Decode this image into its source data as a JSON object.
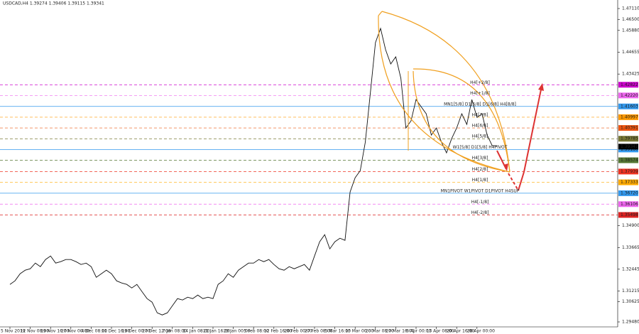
{
  "chart_data": {
    "type": "line",
    "title": "USDCAD,H4  1.39274 1.39406 1.39115 1.39341",
    "categories": [
      "5 Nov 2019",
      null,
      null,
      null,
      "12 Nov 08:00",
      null,
      null,
      null,
      "19 Nov 16:00",
      null,
      null,
      null,
      "27 Nov 00:00",
      null,
      null,
      null,
      "4 Dec 08:00",
      null,
      null,
      null,
      "11 Dec 16:00",
      null,
      null,
      null,
      "19 Dec 00:00",
      null,
      null,
      null,
      "27 Dec 12:00",
      null,
      null,
      null,
      "7 Jan 08:00",
      null,
      null,
      null,
      "14 Jan 08:00",
      null,
      null,
      null,
      "21 Jan 16:00",
      null,
      null,
      null,
      "29 Jan 00:00",
      null,
      null,
      null,
      "5 Feb 08:00",
      null,
      null,
      null,
      "12 Feb 16:00",
      null,
      null,
      null,
      "20 Feb 00:00",
      null,
      null,
      null,
      "27 Feb 08:00",
      null,
      null,
      null,
      "5 Mar 16:00",
      null,
      null,
      null,
      "13 Mar 00:00",
      null,
      null,
      null,
      "20 Mar 08:00",
      null,
      null,
      null,
      "27 Mar 16:00",
      null,
      null,
      null,
      "6 Apr 00:00",
      null,
      null,
      null,
      "13 Apr 08:00",
      null,
      null,
      null,
      "20 Apr 16:00",
      null,
      null,
      null,
      "28 Apr 00:00",
      null,
      null,
      null,
      null
    ],
    "values": [
      1.3159,
      1.3179,
      1.3219,
      1.3239,
      1.3247,
      1.3279,
      1.3259,
      1.3299,
      1.3319,
      1.3279,
      1.3287,
      1.3299,
      1.3299,
      1.3287,
      1.3271,
      1.3279,
      1.3259,
      1.3199,
      1.3219,
      1.3239,
      1.3219,
      1.3179,
      1.3167,
      1.3159,
      1.3139,
      1.3159,
      1.3119,
      1.3079,
      1.3059,
      1.2999,
      1.2987,
      1.2999,
      1.3039,
      1.3079,
      1.3071,
      1.3087,
      1.3079,
      1.3099,
      1.3079,
      1.3087,
      1.3079,
      1.3159,
      1.3179,
      1.3219,
      1.3199,
      1.3239,
      1.3259,
      1.3279,
      1.3279,
      1.3299,
      1.3287,
      1.3299,
      1.3271,
      1.3247,
      1.3239,
      1.3259,
      1.3247,
      1.3259,
      1.3271,
      1.3239,
      1.3319,
      1.3399,
      1.3439,
      1.3359,
      1.3399,
      1.3419,
      1.3407,
      1.3679,
      1.3759,
      1.3799,
      1.3959,
      1.4239,
      1.4519,
      1.4599,
      1.4479,
      1.4399,
      1.4439,
      1.4319,
      1.4039,
      1.4079,
      1.4199,
      1.4159,
      1.4119,
      1.3999,
      1.4039,
      1.3959,
      1.3899,
      1.3979,
      1.4039,
      1.4119,
      1.4059,
      1.4199,
      1.4099,
      1.4119,
      1.3999,
      1.3939,
      1.3939
    ],
    "color": "#111111",
    "ylim": [
      1.292,
      1.4759
    ],
    "yticks": [
      {
        "value": 1.4711,
        "label": "1.47110"
      },
      {
        "value": 1.465,
        "label": "1.46500"
      },
      {
        "value": 1.4588,
        "label": "1.45880"
      },
      {
        "value": 1.44655,
        "label": "1.44655"
      },
      {
        "value": 1.43425,
        "label": "1.43425"
      },
      {
        "value": 1.349,
        "label": "1.34900"
      },
      {
        "value": 1.33665,
        "label": "1.33665"
      },
      {
        "value": 1.32445,
        "label": "1.32445"
      },
      {
        "value": 1.31215,
        "label": "1.31215"
      },
      {
        "value": 1.30625,
        "label": "1.30625"
      },
      {
        "value": 1.2948,
        "label": "1.29480"
      }
    ],
    "levels": [
      {
        "name": "H4[+2/8]",
        "value": 1.42822,
        "tag": "1.42822",
        "color": "#cc00cc",
        "dash": true
      },
      {
        "name": "H4[+1/8]",
        "value": 1.4222,
        "tag": "1.42220",
        "color": "#ee66ee",
        "dash": true
      },
      {
        "name": "MN1[5/8] D1[5/8] D1[6/8] H4[8/8]",
        "value": 1.41603,
        "tag": "1.41603",
        "color": "#3399ee",
        "dash": false
      },
      {
        "name": "H4[7/8]",
        "value": 1.40997,
        "tag": "1.40997",
        "color": "#ff9900",
        "dash": true
      },
      {
        "name": "H4[6/8]",
        "value": 1.40391,
        "tag": "1.40391",
        "color": "#ee5511",
        "dash": true
      },
      {
        "name": "H4[5/8]",
        "value": 1.39785,
        "tag": "1.39785",
        "color": "#777733",
        "dash": true
      },
      {
        "name": "W1[5/8] D1[5/8] H4PIVOT",
        "value": 1.3918,
        "tag": "1.39180",
        "color": "#3399ee",
        "dash": false
      },
      {
        "name": "H4[3/8]",
        "value": 1.38574,
        "tag": "1.38574",
        "color": "#557733",
        "dash": true
      },
      {
        "name": "H4[2/8]",
        "value": 1.37939,
        "tag": "1.37939",
        "color": "#ee3322",
        "dash": true
      },
      {
        "name": "H4[1/8]",
        "value": 1.37333,
        "tag": "1.37333",
        "color": "#ffaa00",
        "dash": true
      },
      {
        "name": "MN1PIVOT W1PIVOT D1PIVOT H4SUP",
        "value": 1.3672,
        "tag": "1.36720",
        "color": "#3399ee",
        "dash": false
      },
      {
        "name": "H4[-1/8]",
        "value": 1.36106,
        "tag": "1.36106",
        "color": "#ee66ee",
        "dash": true
      },
      {
        "name": "H4[-2/8]",
        "value": 1.35498,
        "tag": "1.35498",
        "color": "#dd2222",
        "dash": true
      }
    ],
    "current": {
      "value": 1.39341,
      "tag": "1.39341"
    }
  }
}
